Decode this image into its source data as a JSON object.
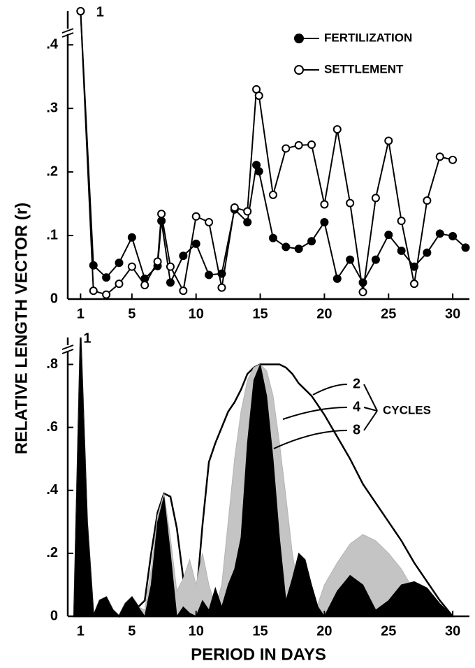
{
  "chart_data": [
    {
      "type": "line",
      "ylabel": "RELATIVE LENGTH VECTOR (r)",
      "x": [
        1,
        2,
        3,
        4,
        5,
        6,
        7,
        7.3,
        8,
        9,
        10,
        11,
        12,
        13,
        14,
        14.7,
        14.9,
        16,
        17,
        18,
        19,
        20,
        21,
        22,
        23,
        24,
        25,
        26,
        27,
        28,
        29,
        30,
        31
      ],
      "series": [
        {
          "name": "FERTILIZATION",
          "color": "#000000",
          "marker_fill": "#000000",
          "values": [
            1,
            0.053,
            0.034,
            0.057,
            0.097,
            0.032,
            0.052,
            0.123,
            0.026,
            0.068,
            0.087,
            0.038,
            0.04,
            0.141,
            0.121,
            0.211,
            0.201,
            0.096,
            0.082,
            0.079,
            0.091,
            0.121,
            0.032,
            0.062,
            0.026,
            0.062,
            0.101,
            0.076,
            0.051,
            0.073,
            0.103,
            0.099,
            0.081
          ]
        },
        {
          "name": "SETTLEMENT",
          "color": "#000000",
          "marker_fill": "#ffffff",
          "values": [
            1,
            0.013,
            0.007,
            0.024,
            0.051,
            0.022,
            0.059,
            0.134,
            0.051,
            0.013,
            0.13,
            0.121,
            0.018,
            0.144,
            0.138,
            0.33,
            0.32,
            0.164,
            0.237,
            0.242,
            0.243,
            0.149,
            0.267,
            0.151,
            0.011,
            0.159,
            0.249,
            0.123,
            0.024,
            0.155,
            0.224,
            0.219,
            null
          ]
        }
      ],
      "xlim": [
        0,
        31.3
      ],
      "ylim": [
        0,
        1
      ],
      "y_break": 0.42,
      "xticks": [
        1,
        5,
        10,
        15,
        20,
        25,
        30
      ],
      "yticks": [
        0,
        {
          "value": 0.1,
          "label": ".1"
        },
        {
          "value": 0.2,
          "label": ".2"
        },
        {
          "value": 0.3,
          "label": ".3"
        },
        {
          "value": 0.4,
          "label": ".4"
        }
      ],
      "annotation": "1"
    },
    {
      "type": "area",
      "xlabel": "PERIOD IN DAYS",
      "legend_title": "CYCLES",
      "x": [
        0.5,
        1,
        1.5,
        2,
        2.5,
        3,
        3.5,
        4,
        4.5,
        5,
        5.5,
        6,
        6.5,
        7,
        7.5,
        8,
        8.5,
        9,
        9.5,
        10,
        10.5,
        11,
        11.5,
        12,
        12.5,
        13,
        13.5,
        14,
        14.5,
        15,
        15.5,
        16,
        16.5,
        17,
        17.5,
        18,
        18.5,
        19,
        19.5,
        20,
        21,
        22,
        23,
        24,
        25,
        26,
        27,
        28,
        29,
        30
      ],
      "series": [
        {
          "name": "2",
          "color": "#000000",
          "fill": "#ffffff",
          "values": [
            0,
            1,
            0.3,
            0,
            0.05,
            0.06,
            0.02,
            0,
            0.04,
            0.06,
            0.03,
            0.05,
            0.2,
            0.33,
            0.39,
            0.38,
            0.28,
            0.12,
            0.01,
            0.05,
            0.29,
            0.49,
            0.55,
            0.6,
            0.65,
            0.68,
            0.72,
            0.77,
            0.79,
            0.8,
            0.8,
            0.8,
            0.8,
            0.79,
            0.77,
            0.74,
            0.72,
            0.7,
            0.67,
            0.64,
            0.57,
            0.5,
            0.42,
            0.36,
            0.3,
            0.24,
            0.17,
            0.11,
            0.05,
            0
          ]
        },
        {
          "name": "4",
          "color": "#b4b4b4",
          "fill": "#c4c4c4",
          "values": [
            0,
            1,
            0.3,
            0,
            0.05,
            0.06,
            0.02,
            0,
            0.04,
            0.06,
            0.03,
            0.02,
            0.15,
            0.32,
            0.39,
            0.25,
            0.08,
            0.12,
            0.18,
            0.1,
            0.2,
            0.1,
            0.03,
            0.1,
            0.3,
            0.5,
            0.65,
            0.75,
            0.79,
            0.8,
            0.78,
            0.7,
            0.55,
            0.38,
            0.2,
            0.08,
            0.02,
            0,
            0.04,
            0.1,
            0.17,
            0.23,
            0.26,
            0.24,
            0.2,
            0.15,
            0.08,
            0.02,
            0,
            0
          ]
        },
        {
          "name": "8",
          "color": "#000000",
          "fill": "#000000",
          "values": [
            0,
            1,
            0.3,
            0,
            0.05,
            0.06,
            0.02,
            0,
            0.04,
            0.06,
            0.03,
            0,
            0.1,
            0.3,
            0.38,
            0.2,
            0,
            0.03,
            0.01,
            0,
            0.05,
            0.02,
            0.09,
            0.03,
            0.1,
            0.15,
            0.25,
            0.55,
            0.75,
            0.8,
            0.7,
            0.5,
            0.25,
            0.05,
            0.12,
            0.2,
            0.18,
            0.1,
            0.03,
            0,
            0.08,
            0.13,
            0.1,
            0.02,
            0.05,
            0.1,
            0.11,
            0.09,
            0.04,
            0
          ]
        }
      ],
      "xlim": [
        0,
        31.3
      ],
      "ylim": [
        0,
        1
      ],
      "y_break": 0.85,
      "xticks": [
        1,
        5,
        10,
        15,
        20,
        25,
        30
      ],
      "yticks": [
        0,
        {
          "value": 0.2,
          "label": ".2"
        },
        {
          "value": 0.4,
          "label": ".4"
        },
        {
          "value": 0.6,
          "label": ".6"
        },
        {
          "value": 0.8,
          "label": ".8"
        }
      ],
      "annotation": "1"
    }
  ]
}
